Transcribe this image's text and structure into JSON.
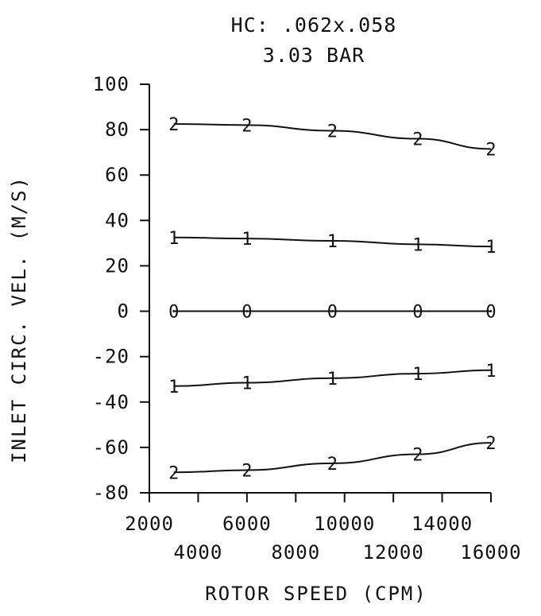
{
  "chart_data": {
    "type": "line",
    "title": "HC: .062x.058",
    "subtitle": "3.03 BAR",
    "xlabel": "ROTOR SPEED (CPM)",
    "ylabel": "INLET CIRC. VEL. (M/S)",
    "xlim": [
      2000,
      16000
    ],
    "ylim": [
      -80,
      100
    ],
    "x_ticks_upper": [
      "2000",
      "6000",
      "10000",
      "14000"
    ],
    "x_ticks_lower": [
      "4000",
      "8000",
      "12000",
      "16000"
    ],
    "y_ticks": [
      "100",
      "80",
      "60",
      "40",
      "20",
      "0",
      "-20",
      "-40",
      "-60",
      "-80"
    ],
    "grid": false,
    "series": [
      {
        "marker": "2",
        "x": [
          3000,
          6000,
          9500,
          13000,
          16000
        ],
        "y": [
          82.5,
          82,
          79.5,
          76,
          71.5
        ]
      },
      {
        "marker": "1",
        "x": [
          3000,
          6000,
          9500,
          13000,
          16000
        ],
        "y": [
          32.5,
          32,
          31,
          29.5,
          28.5
        ]
      },
      {
        "marker": "0",
        "x": [
          3000,
          6000,
          9500,
          13000,
          16000
        ],
        "y": [
          0,
          0,
          0,
          0,
          0
        ]
      },
      {
        "marker": "1",
        "x": [
          3000,
          6000,
          9500,
          13000,
          16000
        ],
        "y": [
          -33,
          -31.5,
          -29.5,
          -27.5,
          -26
        ]
      },
      {
        "marker": "2",
        "x": [
          3000,
          6000,
          9500,
          13000,
          16000
        ],
        "y": [
          -71,
          -70,
          -67,
          -63,
          -58
        ]
      }
    ]
  }
}
